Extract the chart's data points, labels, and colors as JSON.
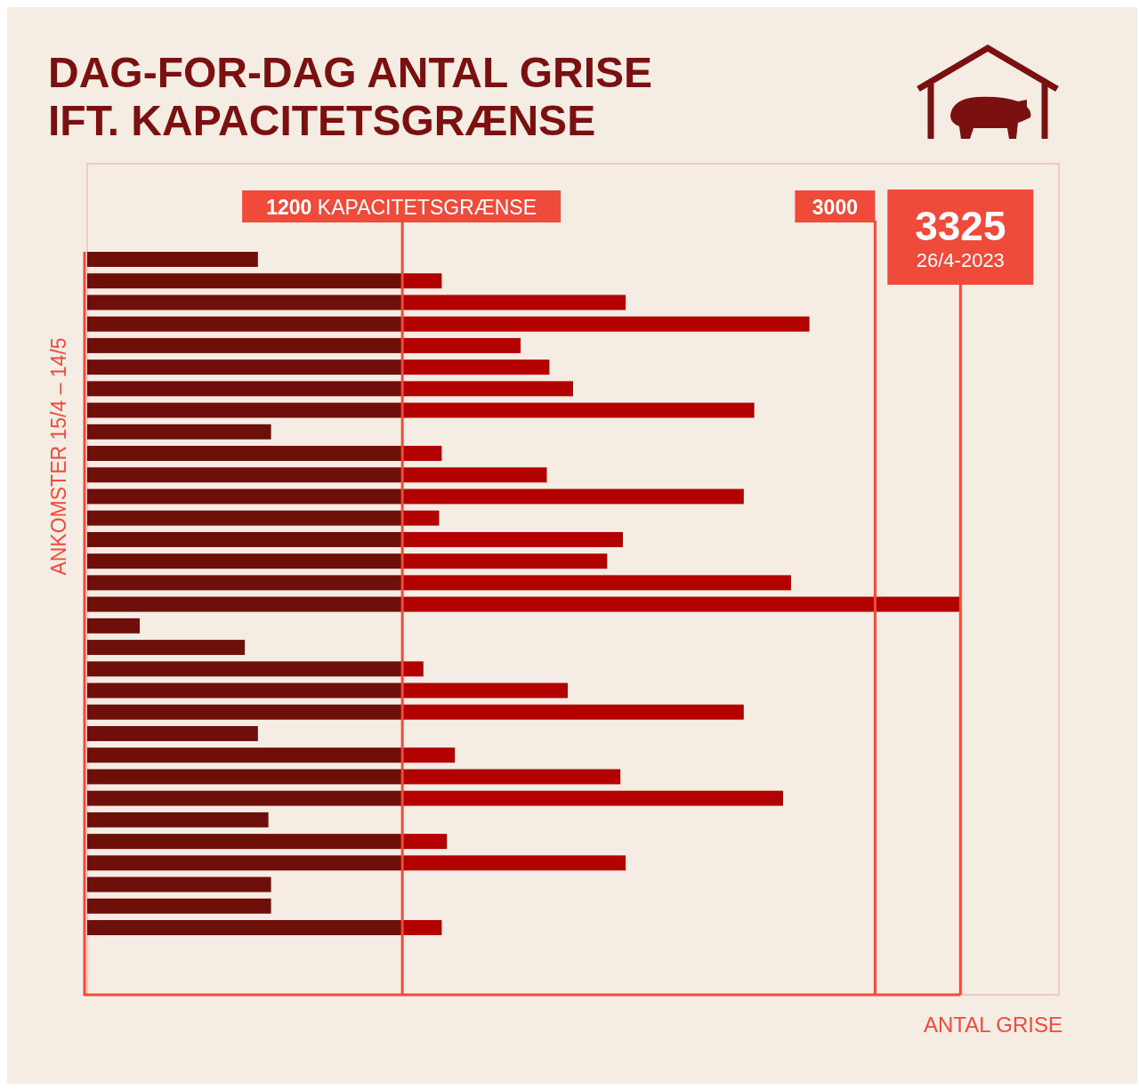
{
  "chart_data": {
    "type": "bar",
    "orientation": "horizontal",
    "stacked": true,
    "title": "DAG-FOR-DAG ANTAL GRISE\nIFT. KAPACITETSGRÆNSE",
    "ylabel": "ANKOMSTER 15/4 – 14/5",
    "xlabel": "ANTAL GRISE",
    "categories": [
      null,
      null,
      null,
      null,
      null,
      null,
      null,
      null,
      null,
      null,
      null,
      null,
      null,
      null,
      null,
      null,
      null,
      null,
      null,
      null,
      null,
      null,
      null,
      null,
      null,
      null,
      null,
      null,
      null,
      null,
      null,
      null
    ],
    "xlim": [
      0,
      3700
    ],
    "series": [
      {
        "color": "#6e0f0a",
        "values": [
          650,
          1200,
          1200,
          1200,
          1200,
          1200,
          1200,
          1200,
          700,
          1200,
          1200,
          1200,
          1200,
          1200,
          1200,
          1200,
          1200,
          200,
          600,
          1200,
          1200,
          1200,
          650,
          1200,
          1200,
          1200,
          690,
          1200,
          1200,
          700,
          700,
          1200
        ]
      },
      {
        "color": "#b30000",
        "values": [
          0,
          150,
          850,
          1550,
          450,
          560,
          650,
          1340,
          0,
          150,
          550,
          1300,
          140,
          840,
          780,
          1480,
          2125,
          0,
          0,
          80,
          630,
          1300,
          0,
          200,
          830,
          1450,
          0,
          170,
          850,
          0,
          0,
          150
        ]
      }
    ],
    "ref_lines": [
      {
        "axis": "x",
        "value": 1200,
        "label": "1200 KAPACITETSGRÆNSE",
        "color": "#f04a3a"
      },
      {
        "axis": "x",
        "value": 3000,
        "label": "3000",
        "color": "#f04a3a"
      },
      {
        "axis": "x",
        "value": 3325,
        "label": "3325",
        "color": "#f04a3a"
      }
    ],
    "annotations": [
      "26/4-2023"
    ]
  }
}
